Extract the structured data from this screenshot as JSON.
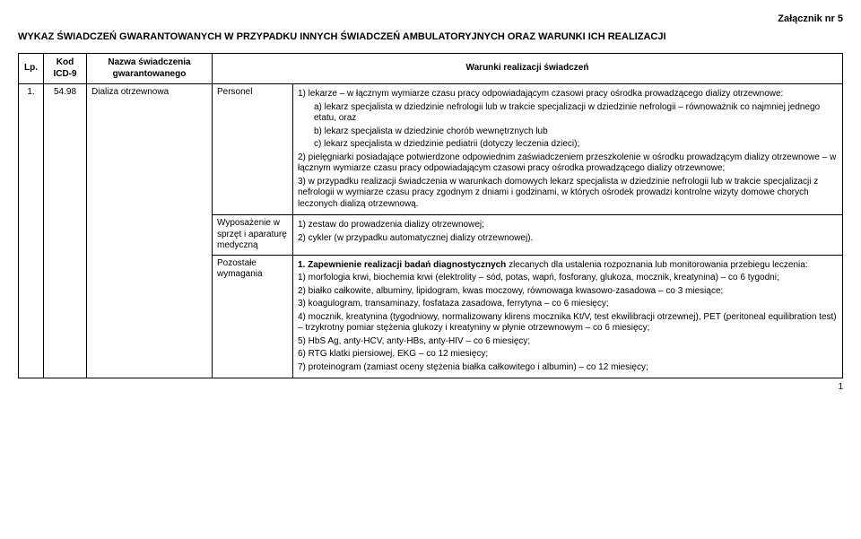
{
  "attachment_label": "Załącznik nr 5",
  "title": "WYKAZ ŚWIADCZEŃ GWARANTOWANYCH W PRZYPADKU INNYCH ŚWIADCZEŃ AMBULATORYJNYCH ORAZ WARUNKI ICH REALIZACJI",
  "headers": {
    "lp": "Lp.",
    "kod": "Kod ICD-9",
    "nazwa": "Nazwa świadczenia gwarantowanego",
    "warunki": "Warunki realizacji świadczeń"
  },
  "row": {
    "lp": "1.",
    "kod": "54.98",
    "nazwa": "Dializa otrzewnowa",
    "sections": {
      "personel": {
        "label": "Personel",
        "item1": "1) lekarze – w łącznym wymiarze czasu pracy odpowiadającym czasowi pracy ośrodka prowadzącego dializy otrzewnowe:",
        "item1a": "a) lekarz specjalista w dziedzinie  nefrologii lub w trakcie specjalizacji w dziedzinie nefrologii – równoważnik co  najmniej jednego etatu, oraz",
        "item1b": "b) lekarz specjalista w dziedzinie chorób wewnętrznych lub",
        "item1c": "c) lekarz specjalista w dziedzinie pediatrii (dotyczy leczenia dzieci);",
        "item2": "2) pielęgniarki posiadające potwierdzone odpowiednim zaświadczeniem przeszkolenie w ośrodku prowadzącym dializy otrzewnowe – w łącznym wymiarze czasu pracy odpowiadającym czasowi pracy ośrodka prowadzącego dializy otrzewnowe;",
        "item3": "3) w przypadku realizacji świadczenia w warunkach domowych lekarz specjalista w dziedzinie nefrologii lub w trakcie specjalizacji z nefrologii w wymiarze czasu pracy zgodnym z dniami i godzinami, w których ośrodek prowadzi kontrolne wizyty domowe chorych leczonych dializą otrzewnową."
      },
      "wyposazenie": {
        "label": "Wyposażenie w sprzęt i aparaturę medyczną",
        "item1": "1) zestaw do prowadzenia dializy otrzewnowej;",
        "item2": "2) cykler (w przypadku automatycznej dializy otrzewnowej)."
      },
      "pozostale": {
        "label": "Pozostałe wymagania",
        "intro_bold": "1. Zapewnienie realizacji badań diagnostycznych",
        "intro_rest": " zlecanych dla ustalenia rozpoznania lub monitorowania przebiegu leczenia:",
        "item1": "1)  morfologia krwi, biochemia krwi (elektrolity – sód, potas, wapń, fosforany, glukoza, mocznik, kreatynina) – co 6 tygodni;",
        "item2": "2)  białko całkowite, albuminy, lipidogram, kwas moczowy, równowaga kwasowo-zasadowa – co 3 miesiące;",
        "item3": "3)  koagulogram, transaminazy, fosfataza zasadowa, ferrytyna – co 6 miesięcy;",
        "item4": "4)  mocznik, kreatynina (tygodniowy, normalizowany klirens mocznika Kt/V, test ekwilibracji otrzewnej), PET (peritoneal equilibration test) – trzykrotny pomiar stężenia glukozy i kreatyniny w płynie otrzewnowym – co 6 miesięcy;",
        "item5": "5)  HbS Ag, anty-HCV, anty-HBs, anty-HIV – co 6 miesięcy;",
        "item6": "6)  RTG klatki piersiowej, EKG – co 12 miesięcy;",
        "item7": "7)  proteinogram (zamiast oceny stężenia białka całkowitego i albumin) – co 12 miesięcy;"
      }
    }
  },
  "page_number": "1"
}
